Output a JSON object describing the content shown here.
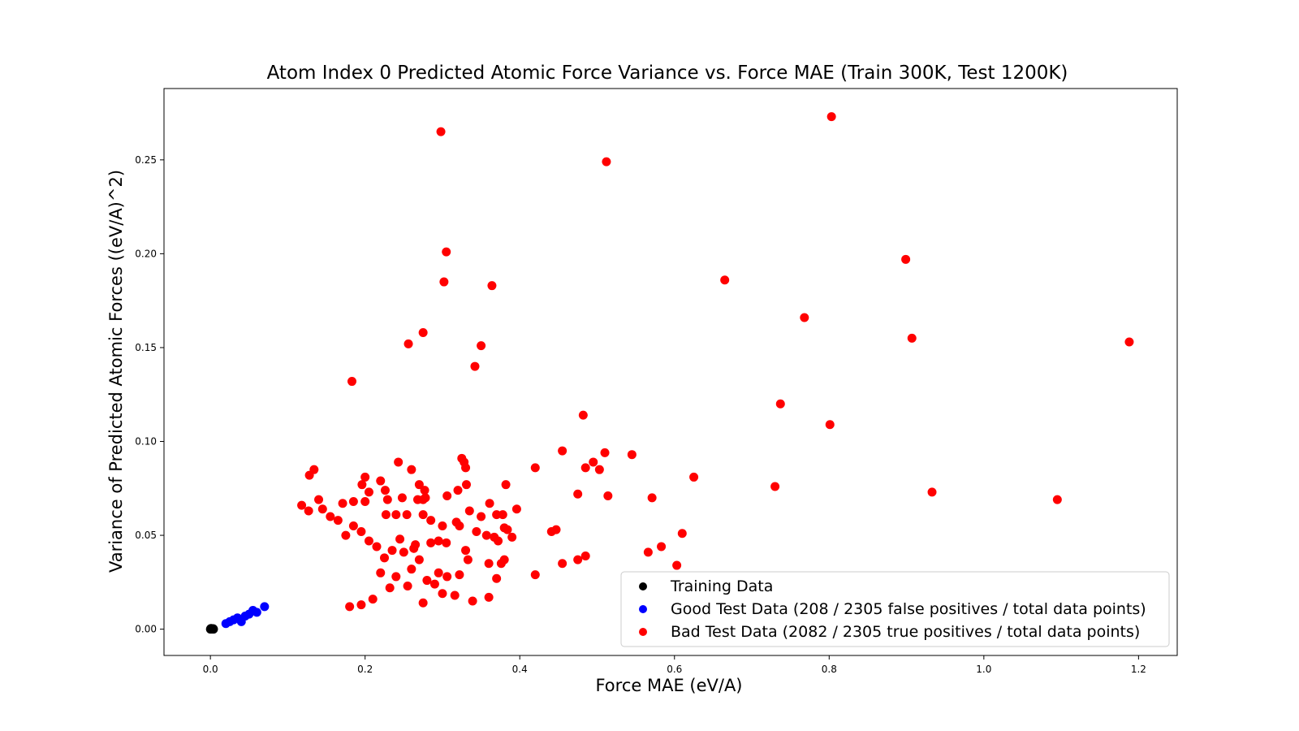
{
  "chart_data": {
    "type": "scatter",
    "title": "Atom Index 0 Predicted Atomic Force Variance vs. Force MAE (Train 300K, Test 1200K)",
    "xlabel": "Force MAE (eV/A)",
    "ylabel": "Variance of Predicted Atomic Forces ((eV/A)^2)",
    "xlim": [
      -0.06,
      1.25
    ],
    "ylim": [
      -0.014,
      0.288
    ],
    "xticks": [
      0.0,
      0.2,
      0.4,
      0.6,
      0.8,
      1.0,
      1.2
    ],
    "xtick_labels": [
      "0.0",
      "0.2",
      "0.4",
      "0.6",
      "0.8",
      "1.0",
      "1.2"
    ],
    "yticks": [
      0.0,
      0.05,
      0.1,
      0.15,
      0.2,
      0.25
    ],
    "ytick_labels": [
      "0.00",
      "0.05",
      "0.10",
      "0.15",
      "0.20",
      "0.25"
    ],
    "grid": false,
    "legend_position": "lower-right",
    "series": [
      {
        "name": "Training Data",
        "color": "#000000",
        "points": [
          [
            0.0,
            0.0
          ],
          [
            0.001,
            0.0001
          ],
          [
            0.002,
            0.0
          ],
          [
            0.0015,
            0.0002
          ],
          [
            0.003,
            0.0001
          ],
          [
            0.0005,
            0.0003
          ],
          [
            0.0025,
            0.0002
          ],
          [
            0.004,
            0.0
          ],
          [
            0.001,
            0.0004
          ],
          [
            0.0035,
            0.0003
          ]
        ]
      },
      {
        "name": "Good Test Data (208 / 2305 false positives / total data points)",
        "color": "#0000ff",
        "points": [
          [
            0.02,
            0.003
          ],
          [
            0.03,
            0.005
          ],
          [
            0.04,
            0.004
          ],
          [
            0.05,
            0.008
          ],
          [
            0.035,
            0.006
          ],
          [
            0.045,
            0.007
          ],
          [
            0.06,
            0.009
          ],
          [
            0.025,
            0.004
          ],
          [
            0.055,
            0.01
          ],
          [
            0.07,
            0.012
          ]
        ]
      },
      {
        "name": "Bad Test Data (2082 / 2305 true positives / total data points)",
        "color": "#ff0000",
        "points": [
          [
            0.298,
            0.265
          ],
          [
            0.803,
            0.273
          ],
          [
            0.512,
            0.249
          ],
          [
            0.305,
            0.201
          ],
          [
            0.899,
            0.197
          ],
          [
            0.302,
            0.185
          ],
          [
            0.364,
            0.183
          ],
          [
            0.665,
            0.186
          ],
          [
            0.768,
            0.166
          ],
          [
            0.907,
            0.155
          ],
          [
            1.188,
            0.153
          ],
          [
            0.256,
            0.152
          ],
          [
            0.275,
            0.158
          ],
          [
            0.35,
            0.151
          ],
          [
            0.342,
            0.14
          ],
          [
            0.183,
            0.132
          ],
          [
            0.737,
            0.12
          ],
          [
            0.801,
            0.109
          ],
          [
            0.482,
            0.114
          ],
          [
            0.455,
            0.095
          ],
          [
            0.51,
            0.094
          ],
          [
            0.545,
            0.093
          ],
          [
            0.495,
            0.089
          ],
          [
            0.485,
            0.086
          ],
          [
            0.503,
            0.085
          ],
          [
            0.625,
            0.081
          ],
          [
            0.73,
            0.076
          ],
          [
            0.475,
            0.072
          ],
          [
            0.514,
            0.071
          ],
          [
            0.571,
            0.07
          ],
          [
            0.933,
            0.073
          ],
          [
            1.095,
            0.069
          ],
          [
            0.42,
            0.086
          ],
          [
            0.382,
            0.077
          ],
          [
            0.396,
            0.064
          ],
          [
            0.37,
            0.061
          ],
          [
            0.378,
            0.061
          ],
          [
            0.361,
            0.067
          ],
          [
            0.441,
            0.052
          ],
          [
            0.447,
            0.053
          ],
          [
            0.61,
            0.051
          ],
          [
            0.583,
            0.044
          ],
          [
            0.566,
            0.041
          ],
          [
            0.603,
            0.034
          ],
          [
            0.485,
            0.039
          ],
          [
            0.475,
            0.037
          ],
          [
            0.455,
            0.035
          ],
          [
            0.42,
            0.029
          ],
          [
            0.344,
            0.052
          ],
          [
            0.357,
            0.05
          ],
          [
            0.367,
            0.049
          ],
          [
            0.38,
            0.054
          ],
          [
            0.384,
            0.053
          ],
          [
            0.39,
            0.049
          ],
          [
            0.372,
            0.047
          ],
          [
            0.38,
            0.037
          ],
          [
            0.376,
            0.035
          ],
          [
            0.36,
            0.035
          ],
          [
            0.37,
            0.027
          ],
          [
            0.36,
            0.017
          ],
          [
            0.339,
            0.015
          ],
          [
            0.325,
            0.091
          ],
          [
            0.33,
            0.086
          ],
          [
            0.328,
            0.089
          ],
          [
            0.32,
            0.074
          ],
          [
            0.306,
            0.071
          ],
          [
            0.331,
            0.077
          ],
          [
            0.243,
            0.089
          ],
          [
            0.26,
            0.085
          ],
          [
            0.27,
            0.077
          ],
          [
            0.277,
            0.074
          ],
          [
            0.278,
            0.07
          ],
          [
            0.275,
            0.069
          ],
          [
            0.134,
            0.085
          ],
          [
            0.128,
            0.082
          ],
          [
            0.2,
            0.081
          ],
          [
            0.22,
            0.079
          ],
          [
            0.196,
            0.077
          ],
          [
            0.226,
            0.074
          ],
          [
            0.205,
            0.073
          ],
          [
            0.248,
            0.07
          ],
          [
            0.229,
            0.069
          ],
          [
            0.268,
            0.069
          ],
          [
            0.2,
            0.068
          ],
          [
            0.185,
            0.068
          ],
          [
            0.171,
            0.067
          ],
          [
            0.227,
            0.061
          ],
          [
            0.24,
            0.061
          ],
          [
            0.254,
            0.061
          ],
          [
            0.275,
            0.061
          ],
          [
            0.285,
            0.058
          ],
          [
            0.3,
            0.055
          ],
          [
            0.318,
            0.057
          ],
          [
            0.322,
            0.055
          ],
          [
            0.335,
            0.063
          ],
          [
            0.35,
            0.06
          ],
          [
            0.33,
            0.042
          ],
          [
            0.333,
            0.037
          ],
          [
            0.322,
            0.029
          ],
          [
            0.306,
            0.028
          ],
          [
            0.3,
            0.019
          ],
          [
            0.316,
            0.018
          ],
          [
            0.275,
            0.014
          ],
          [
            0.295,
            0.03
          ],
          [
            0.29,
            0.024
          ],
          [
            0.28,
            0.026
          ],
          [
            0.27,
            0.037
          ],
          [
            0.263,
            0.043
          ],
          [
            0.25,
            0.041
          ],
          [
            0.245,
            0.048
          ],
          [
            0.235,
            0.042
          ],
          [
            0.225,
            0.038
          ],
          [
            0.215,
            0.044
          ],
          [
            0.205,
            0.047
          ],
          [
            0.195,
            0.052
          ],
          [
            0.185,
            0.055
          ],
          [
            0.175,
            0.05
          ],
          [
            0.165,
            0.058
          ],
          [
            0.155,
            0.06
          ],
          [
            0.145,
            0.064
          ],
          [
            0.14,
            0.069
          ],
          [
            0.127,
            0.063
          ],
          [
            0.118,
            0.066
          ],
          [
            0.26,
            0.032
          ],
          [
            0.255,
            0.023
          ],
          [
            0.24,
            0.028
          ],
          [
            0.232,
            0.022
          ],
          [
            0.22,
            0.03
          ],
          [
            0.21,
            0.016
          ],
          [
            0.195,
            0.013
          ],
          [
            0.18,
            0.012
          ],
          [
            0.265,
            0.045
          ],
          [
            0.285,
            0.046
          ],
          [
            0.305,
            0.046
          ],
          [
            0.295,
            0.047
          ]
        ]
      }
    ]
  }
}
